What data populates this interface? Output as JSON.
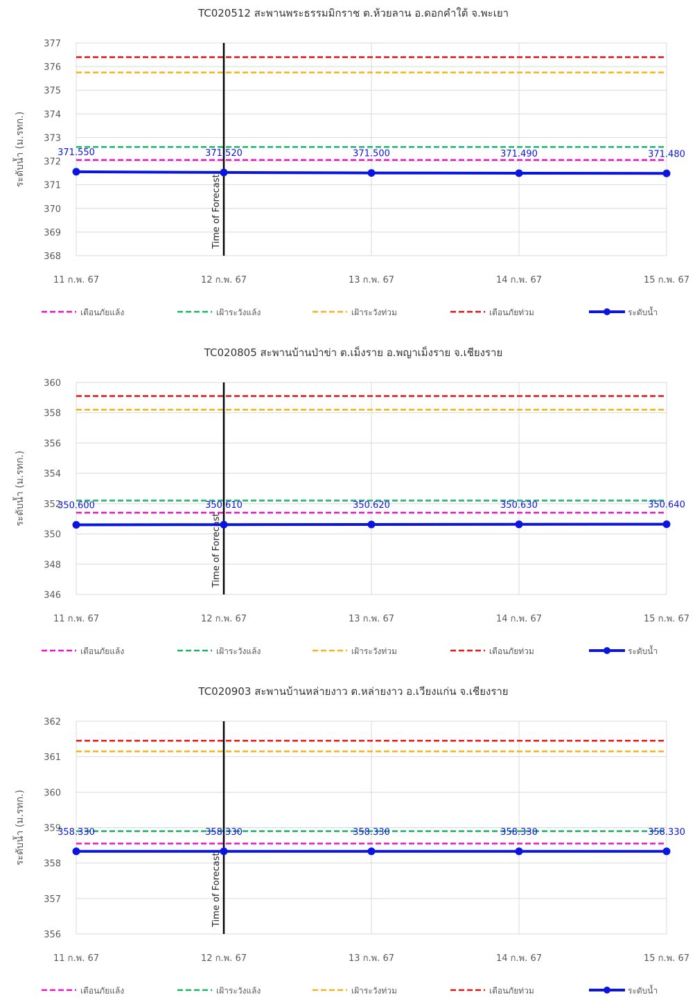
{
  "chart_data": [
    {
      "type": "line",
      "title": "TC020512 สะพานพระธรรมมิกราช ต.ห้วยลาน อ.ดอกคำใต้ จ.พะเยา",
      "ylabel": "ระดับน้ำ (ม.รทก.)",
      "xlabel": "",
      "categories": [
        "11 ก.พ. 67",
        "12 ก.พ. 67",
        "13 ก.พ. 67",
        "14 ก.พ. 67",
        "15 ก.พ. 67"
      ],
      "ylim": [
        368,
        377
      ],
      "yticks": [
        368,
        369,
        370,
        371,
        372,
        373,
        374,
        375,
        376,
        377
      ],
      "forecast_label": "Time of Forecast",
      "forecast_category": "12 ก.พ. 67",
      "thresholds": [
        {
          "name": "เตือนภัยแล้ง",
          "value": 372.05,
          "color": "#e815c8"
        },
        {
          "name": "เฝ้าระวังแล้ง",
          "value": 372.6,
          "color": "#19b26a"
        },
        {
          "name": "เฝ้าระวังท่วม",
          "value": 375.75,
          "color": "#f2b418"
        },
        {
          "name": "เตือนภัยท่วม",
          "value": 376.4,
          "color": "#e01414"
        }
      ],
      "series": [
        {
          "name": "ระดับน้ำ",
          "color": "#0a16e0",
          "values": [
            371.55,
            371.52,
            371.5,
            371.49,
            371.48
          ],
          "labels": [
            "371.550",
            "371.520",
            "371.500",
            "371.490",
            "371.480"
          ]
        }
      ]
    },
    {
      "type": "line",
      "title": "TC020805 สะพานบ้านป่าข่า ต.เม็งราย อ.พญาเม็งราย จ.เชียงราย",
      "ylabel": "ระดับน้ำ (ม.รทก.)",
      "xlabel": "",
      "categories": [
        "11 ก.พ. 67",
        "12 ก.พ. 67",
        "13 ก.พ. 67",
        "14 ก.พ. 67",
        "15 ก.พ. 67"
      ],
      "ylim": [
        346,
        360
      ],
      "yticks": [
        346,
        348,
        350,
        352,
        354,
        356,
        358,
        360
      ],
      "forecast_label": "Time of Forecast",
      "forecast_category": "12 ก.พ. 67",
      "thresholds": [
        {
          "name": "เตือนภัยแล้ง",
          "value": 351.4,
          "color": "#e815c8"
        },
        {
          "name": "เฝ้าระวังแล้ง",
          "value": 352.2,
          "color": "#19b26a"
        },
        {
          "name": "เฝ้าระวังท่วม",
          "value": 358.2,
          "color": "#f2b418"
        },
        {
          "name": "เตือนภัยท่วม",
          "value": 359.1,
          "color": "#e01414"
        }
      ],
      "series": [
        {
          "name": "ระดับน้ำ",
          "color": "#0a16e0",
          "values": [
            350.6,
            350.61,
            350.62,
            350.63,
            350.64
          ],
          "labels": [
            "350.600",
            "350.610",
            "350.620",
            "350.630",
            "350.640"
          ]
        }
      ]
    },
    {
      "type": "line",
      "title": "TC020903 สะพานบ้านหล่ายงาว ต.หล่ายงาว อ.เวียงแก่น จ.เชียงราย",
      "ylabel": "ระดับน้ำ (ม.รทก.)",
      "xlabel": "",
      "categories": [
        "11 ก.พ. 67",
        "12 ก.พ. 67",
        "13 ก.พ. 67",
        "14 ก.พ. 67",
        "15 ก.พ. 67"
      ],
      "ylim": [
        356,
        362
      ],
      "yticks": [
        356,
        357,
        358,
        359,
        360,
        361,
        362
      ],
      "ytick_labels": [
        "356",
        "357",
        "358",
        "359",
        "360",
        "361",
        "362"
      ],
      "forecast_label": "Time of Forecast",
      "forecast_category": "12 ก.พ. 67",
      "thresholds": [
        {
          "name": "เตือนภัยแล้ง",
          "value": 358.55,
          "color": "#e815c8"
        },
        {
          "name": "เฝ้าระวังแล้ง",
          "value": 358.9,
          "color": "#19b26a"
        },
        {
          "name": "เฝ้าระวังท่วม",
          "value": 361.15,
          "color": "#f2b418"
        },
        {
          "name": "เตือนภัยท่วม",
          "value": 361.45,
          "color": "#e01414"
        }
      ],
      "series": [
        {
          "name": "ระดับน้ำ",
          "color": "#0a16e0",
          "values": [
            358.33,
            358.33,
            358.33,
            358.33,
            358.33
          ],
          "labels": [
            "358.330",
            "358.330",
            "358.330",
            "358.330",
            "358.330"
          ]
        }
      ]
    }
  ]
}
